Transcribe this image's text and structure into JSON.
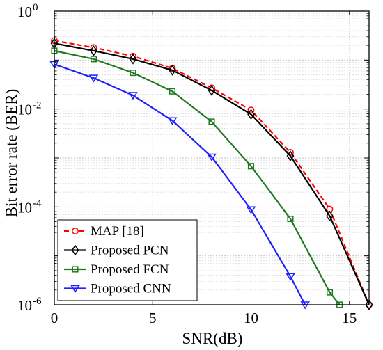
{
  "chart_data": {
    "type": "line",
    "xlabel": "SNR(dB)",
    "ylabel": "Bit error rate (BER)",
    "xlim": [
      0,
      16
    ],
    "ylim": [
      1e-06,
      1
    ],
    "yscale": "log",
    "grid": true,
    "legend_position": "bottom-left",
    "x_ticks": [
      "0",
      "5",
      "10",
      "15"
    ],
    "y_ticks": [
      {
        "base": "10",
        "exp": "0",
        "value": 1
      },
      {
        "base": "10",
        "exp": "-2",
        "value": 0.01
      },
      {
        "base": "10",
        "exp": "-4",
        "value": 0.0001
      },
      {
        "base": "10",
        "exp": "-6",
        "value": 1e-06
      }
    ],
    "series": [
      {
        "name": "MAP [18]",
        "color": "#ff0000",
        "dash": true,
        "marker": "circle",
        "x": [
          0,
          2,
          4,
          6,
          8,
          10,
          12,
          14,
          16
        ],
        "y": [
          0.25,
          0.18,
          0.12,
          0.068,
          0.027,
          0.0095,
          0.0013,
          9e-05,
          1e-06
        ]
      },
      {
        "name": "Proposed PCN",
        "color": "#000000",
        "dash": false,
        "marker": "diamond",
        "x": [
          0,
          2,
          4,
          6,
          8,
          10,
          12,
          14,
          16
        ],
        "y": [
          0.22,
          0.155,
          0.105,
          0.062,
          0.024,
          0.0078,
          0.0011,
          6.5e-05,
          1e-06
        ]
      },
      {
        "name": "Proposed FCN",
        "color": "#1f7a1f",
        "dash": false,
        "marker": "square",
        "x": [
          0,
          2,
          4,
          6,
          8,
          10,
          12,
          14,
          14.5
        ],
        "y": [
          0.155,
          0.105,
          0.055,
          0.023,
          0.0055,
          0.00068,
          5.7e-05,
          1.8e-06,
          1e-06
        ]
      },
      {
        "name": "Proposed CNN",
        "color": "#1f1fff",
        "dash": false,
        "marker": "triangle-down",
        "x": [
          0,
          2,
          4,
          6,
          8,
          10,
          12,
          12.75
        ],
        "y": [
          0.082,
          0.043,
          0.019,
          0.0058,
          0.00105,
          8.8e-05,
          3.8e-06,
          1e-06
        ]
      }
    ]
  }
}
